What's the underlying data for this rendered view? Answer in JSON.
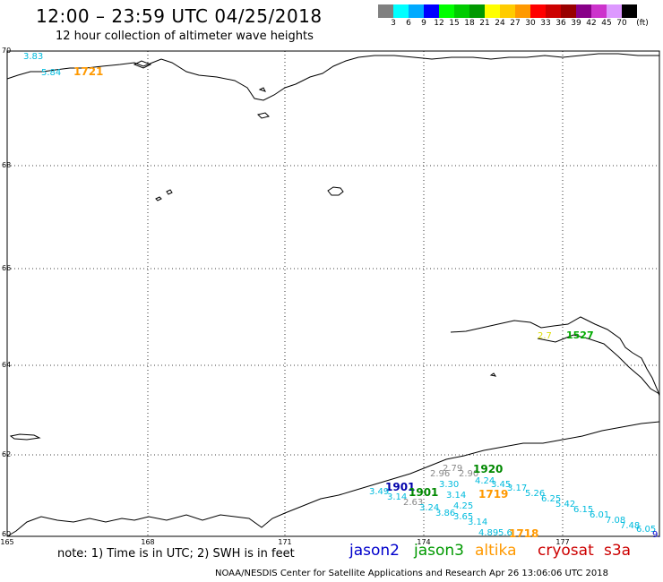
{
  "header": {
    "title": "12:00 – 23:59 UTC 04/25/2018",
    "subtitle": "12 hour collection of altimeter wave heights"
  },
  "colorbar": {
    "colors": [
      "#808080",
      "#00ffff",
      "#00aaff",
      "#0000ff",
      "#00ff00",
      "#00cc00",
      "#009900",
      "#ffff00",
      "#ffcc00",
      "#ff9900",
      "#ff0000",
      "#cc0000",
      "#990000",
      "#880088",
      "#cc33cc",
      "#dd99ff",
      "#000000"
    ],
    "labels": [
      "3",
      "6",
      "9",
      "12",
      "15",
      "18",
      "21",
      "24",
      "27",
      "30",
      "33",
      "36",
      "39",
      "42",
      "45",
      "70",
      "(ft)"
    ]
  },
  "map": {
    "lat_labels": [
      "70",
      "68",
      "66",
      "64",
      "62",
      "60"
    ],
    "lon_labels": [
      "165",
      "168",
      "171",
      "174",
      "177"
    ]
  },
  "annotations": {
    "swh": [
      "3.83",
      "5.84",
      "2.96",
      "2.90",
      "2.79",
      "3.30",
      "4.24",
      "3.45",
      "3.17",
      "5.26",
      "6.25",
      "5.42",
      "6.15",
      "6.01",
      "7.08",
      "7.48",
      "6.05",
      "9.",
      "3.49",
      "3.14",
      "2.63",
      "3.14",
      "4.25",
      "3.24",
      "3.86",
      "3.65",
      "3.14",
      "4.89",
      "5.6",
      "2.7"
    ],
    "times": [
      "1721",
      "1920",
      "1901",
      "1901",
      "1719",
      "1718",
      "1527"
    ]
  },
  "footer": {
    "note": "note: 1) Time is in UTC; 2) SWH is in feet",
    "legend": [
      "jason2",
      "jason3",
      "altika",
      "cryosat",
      "s3a"
    ],
    "legend_colors": [
      "#0000cc",
      "#009900",
      "#ff9900",
      "#cc0000",
      "#cc0000"
    ],
    "credit": "NOAA/NESDIS Center for Satellite Applications and Research    Apr 26 13:06:06 UTC 2018"
  }
}
